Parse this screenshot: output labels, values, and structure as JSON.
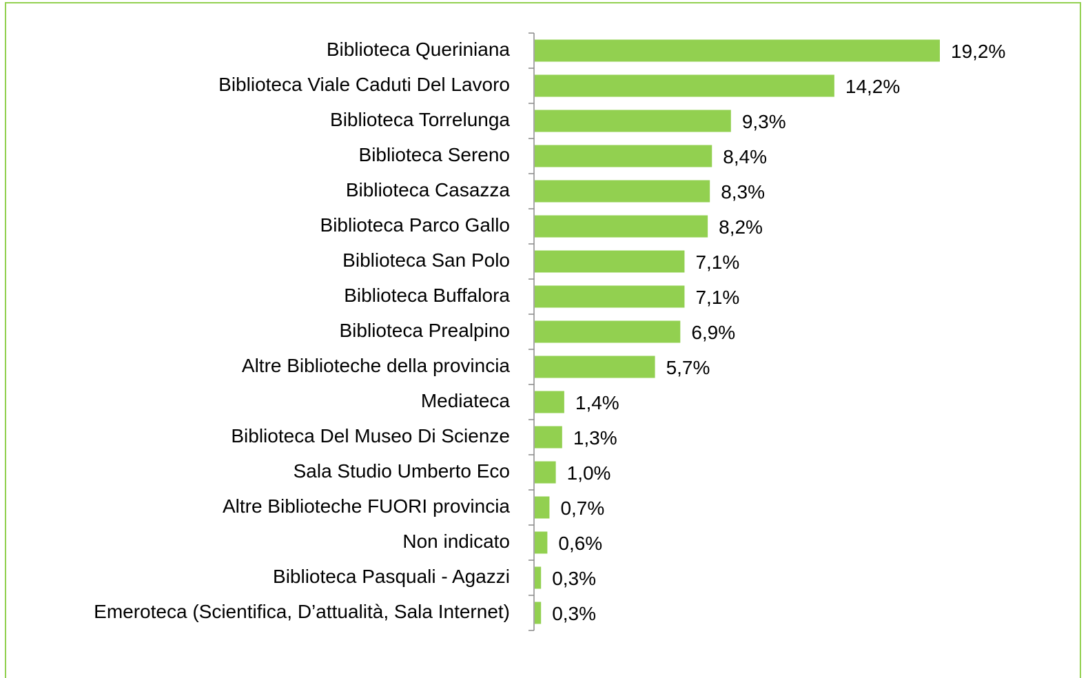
{
  "chart_data": {
    "type": "barh",
    "categories": [
      "Biblioteca Queriniana",
      "Biblioteca Viale Caduti Del Lavoro",
      "Biblioteca Torrelunga",
      "Biblioteca Sereno",
      "Biblioteca Casazza",
      "Biblioteca Parco Gallo",
      "Biblioteca San Polo",
      "Biblioteca Buffalora",
      "Biblioteca Prealpino",
      "Altre Biblioteche della provincia",
      "Mediateca",
      "Biblioteca Del Museo Di Scienze",
      "Sala Studio Umberto Eco",
      "Altre Biblioteche FUORI provincia",
      "Non indicato",
      "Biblioteca Pasquali  - Agazzi",
      "Emeroteca (Scientifica, D’attualità, Sala Internet)"
    ],
    "values": [
      19.2,
      14.2,
      9.3,
      8.4,
      8.3,
      8.2,
      7.1,
      7.1,
      6.9,
      5.7,
      1.4,
      1.3,
      1.0,
      0.7,
      0.6,
      0.3,
      0.3
    ],
    "value_labels": [
      "19,2%",
      "14,2%",
      "9,3%",
      "8,4%",
      "8,3%",
      "8,2%",
      "7,1%",
      "7,1%",
      "6,9%",
      "5,7%",
      "1,4%",
      "1,3%",
      "1,0%",
      "0,7%",
      "0,6%",
      "0,3%",
      "0,3%"
    ],
    "color": "#92d050"
  }
}
